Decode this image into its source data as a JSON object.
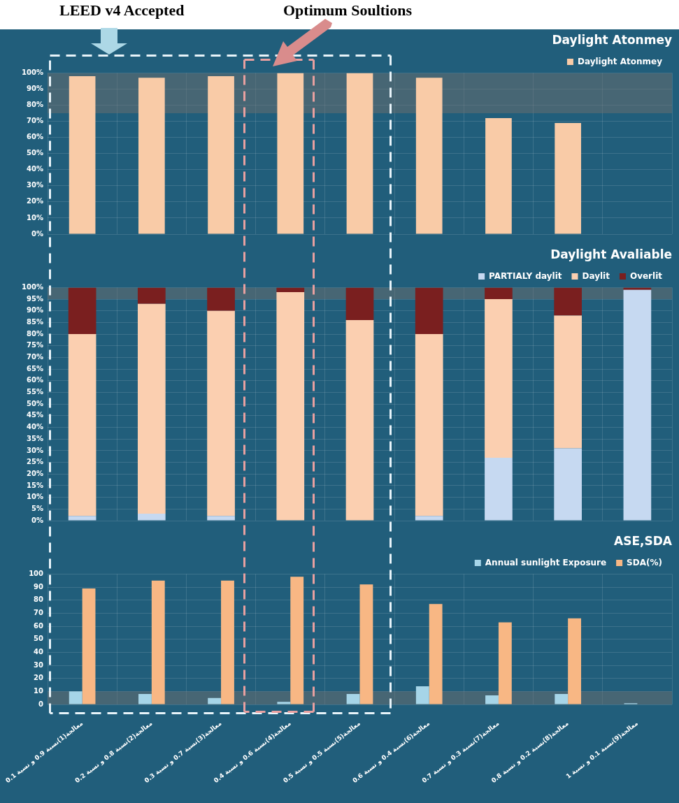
{
  "chart_data": [
    {
      "type": "bar",
      "title": "Daylight Atonmey",
      "annotations": [
        "LEED v4 Accepted",
        "Optimum Soultions"
      ],
      "categories": [
        null,
        null,
        null,
        null,
        null,
        null,
        null,
        null,
        null
      ],
      "series": [
        {
          "name": "Daylight Atonmey",
          "color": "#f9cba7",
          "values": [
            98,
            97,
            98,
            100,
            100,
            97,
            72,
            69,
            null
          ]
        }
      ],
      "ylim": [
        0,
        100
      ],
      "yticks": [
        {
          "value": 0,
          "label": "0%"
        },
        {
          "value": 10,
          "label": "10%"
        },
        {
          "value": 20,
          "label": "20%"
        },
        {
          "value": 30,
          "label": "30%"
        },
        {
          "value": 40,
          "label": "40%"
        },
        {
          "value": 50,
          "label": "50%"
        },
        {
          "value": 60,
          "label": "60%"
        },
        {
          "value": 70,
          "label": "70%"
        },
        {
          "value": 80,
          "label": "80%"
        },
        {
          "value": 90,
          "label": "90%"
        },
        {
          "value": 100,
          "label": "100%"
        }
      ],
      "bands": [
        {
          "axis": "y",
          "from": 75,
          "to": 100,
          "color": "#6e6e6e"
        }
      ],
      "grid": true,
      "legend": "top right",
      "tick_labels": "y"
    },
    {
      "type": "bar",
      "title": "Daylight Avaliable",
      "stacked": true,
      "categories": [
        null,
        null,
        null,
        null,
        null,
        null,
        null,
        null,
        null
      ],
      "series": [
        {
          "name": "PARTIALY daylit",
          "color": "#c6d9f1",
          "values": [
            2,
            3,
            2,
            0,
            0,
            2,
            27,
            31,
            99
          ]
        },
        {
          "name": "Daylit",
          "color": "#fbcfb0",
          "values": [
            78,
            90,
            88,
            98,
            86,
            78,
            68,
            57,
            0
          ]
        },
        {
          "name": "Overlit",
          "color": "#7a1f1f",
          "values": [
            20,
            7,
            10,
            2,
            14,
            20,
            5,
            12,
            1
          ]
        }
      ],
      "ylim": [
        0,
        100
      ],
      "yticks": [
        {
          "value": 0,
          "label": "0%"
        },
        {
          "value": 5,
          "label": "5%"
        },
        {
          "value": 10,
          "label": "10%"
        },
        {
          "value": 15,
          "label": "15%"
        },
        {
          "value": 20,
          "label": "20%"
        },
        {
          "value": 25,
          "label": "25%"
        },
        {
          "value": 30,
          "label": "30%"
        },
        {
          "value": 35,
          "label": "35%"
        },
        {
          "value": 40,
          "label": "40%"
        },
        {
          "value": 45,
          "label": "45%"
        },
        {
          "value": 50,
          "label": "50%"
        },
        {
          "value": 55,
          "label": "55%"
        },
        {
          "value": 60,
          "label": "60%"
        },
        {
          "value": 65,
          "label": "65%"
        },
        {
          "value": 70,
          "label": "70%"
        },
        {
          "value": 75,
          "label": "75%"
        },
        {
          "value": 80,
          "label": "80%"
        },
        {
          "value": 85,
          "label": "85%"
        },
        {
          "value": 90,
          "label": "90%"
        },
        {
          "value": 95,
          "label": "95%"
        },
        {
          "value": 100,
          "label": "100%"
        }
      ],
      "bands": [
        {
          "axis": "y",
          "from": 95,
          "to": 100,
          "color": "#6e6e6e"
        }
      ],
      "grid": true,
      "legend": "top right",
      "tick_labels": "y"
    },
    {
      "type": "bar",
      "title": "ASE,SDA",
      "categories": [
        "معالجة(1)نسبة 0.9 و نسبة 0.1",
        "معالجة(2)نسبة 0.8 و نسبة 0.2",
        "معالجة(3)نسبة 0.7 و نسبة 0.3",
        "معالجة(4)نسبة 0.6 و نسبة 0.4",
        "معالجة(5)نسبة 0.5 و نسبة 0.5",
        "معالجة(6)نسبة 0.4 و نسبة 0.6",
        "معالجة(7)نسبة 0.3 و نسبة 0.7",
        "معالجة(8)نسبة 0.2 و نسبة 0.8",
        "معالجة(9)نسبة 0.1 و نسبة 1"
      ],
      "series": [
        {
          "name": "Annual sunlight Exposure",
          "color": "#a6d5e8",
          "values": [
            10,
            8,
            5,
            2,
            8,
            14,
            7,
            8,
            1
          ]
        },
        {
          "name": "SDA(%)",
          "color": "#f8b784",
          "values": [
            89,
            95,
            95,
            98,
            92,
            77,
            63,
            66,
            null
          ]
        }
      ],
      "ylim": [
        0,
        100
      ],
      "yticks": [
        0,
        10,
        20,
        30,
        40,
        50,
        60,
        70,
        80,
        90,
        100
      ],
      "bands": [
        {
          "axis": "y",
          "from": 0,
          "to": 10,
          "color": "#6e6e6e"
        }
      ],
      "grid": true,
      "legend": "top right"
    }
  ]
}
